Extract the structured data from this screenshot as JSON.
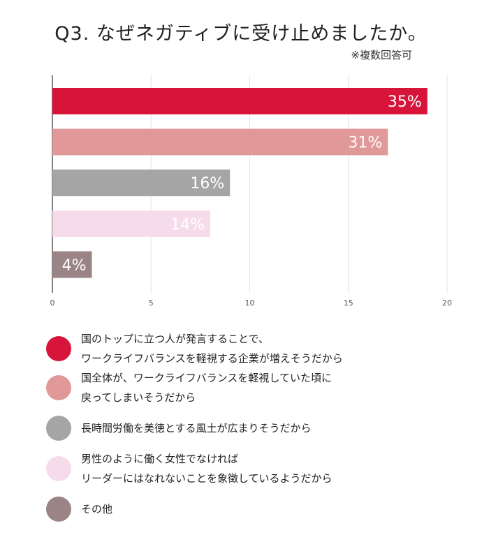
{
  "header": {
    "title": "Q3. なぜネガティブに受け止めましたか。",
    "note": "※複数回答可"
  },
  "chart_data": {
    "type": "bar",
    "orientation": "horizontal",
    "categories": [
      "国のトップに立つ人が発言することで、ワークライフバランスを軽視する企業が増えそうだから",
      "国全体が、ワークライフバランスを軽視していた頃に戻ってしまいそうだから",
      "長時間労働を美徳とする風土が広まりそうだから",
      "男性のように働く女性でなければリーダーにはなれないことを象徴しているようだから",
      "その他"
    ],
    "values": [
      19,
      17,
      9,
      8,
      2
    ],
    "data_labels": [
      "35%",
      "31%",
      "16%",
      "14%",
      "4%"
    ],
    "colors": [
      "#d7153a",
      "#e09898",
      "#a5a5a5",
      "#f6dcea",
      "#9a8485"
    ],
    "xlim": [
      0,
      20
    ],
    "x_ticks": [
      "0",
      "5",
      "10",
      "15",
      "20"
    ],
    "grid": true,
    "legend_position": "bottom"
  },
  "legend": [
    {
      "lines": [
        "国のトップに立つ人が発言することで、",
        "ワークライフバランスを軽視する企業が増えそうだから"
      ],
      "color": "#d7153a"
    },
    {
      "lines": [
        "国全体が、ワークライフバランスを軽視していた頃に",
        "戻ってしまいそうだから"
      ],
      "color": "#e09898"
    },
    {
      "lines": [
        "長時間労働を美徳とする風土が広まりそうだから"
      ],
      "color": "#a5a5a5"
    },
    {
      "lines": [
        "男性のように働く女性でなければ",
        "リーダーにはなれないことを象徴しているようだから"
      ],
      "color": "#f6dcea"
    },
    {
      "lines": [
        "その他"
      ],
      "color": "#9a8485"
    }
  ]
}
